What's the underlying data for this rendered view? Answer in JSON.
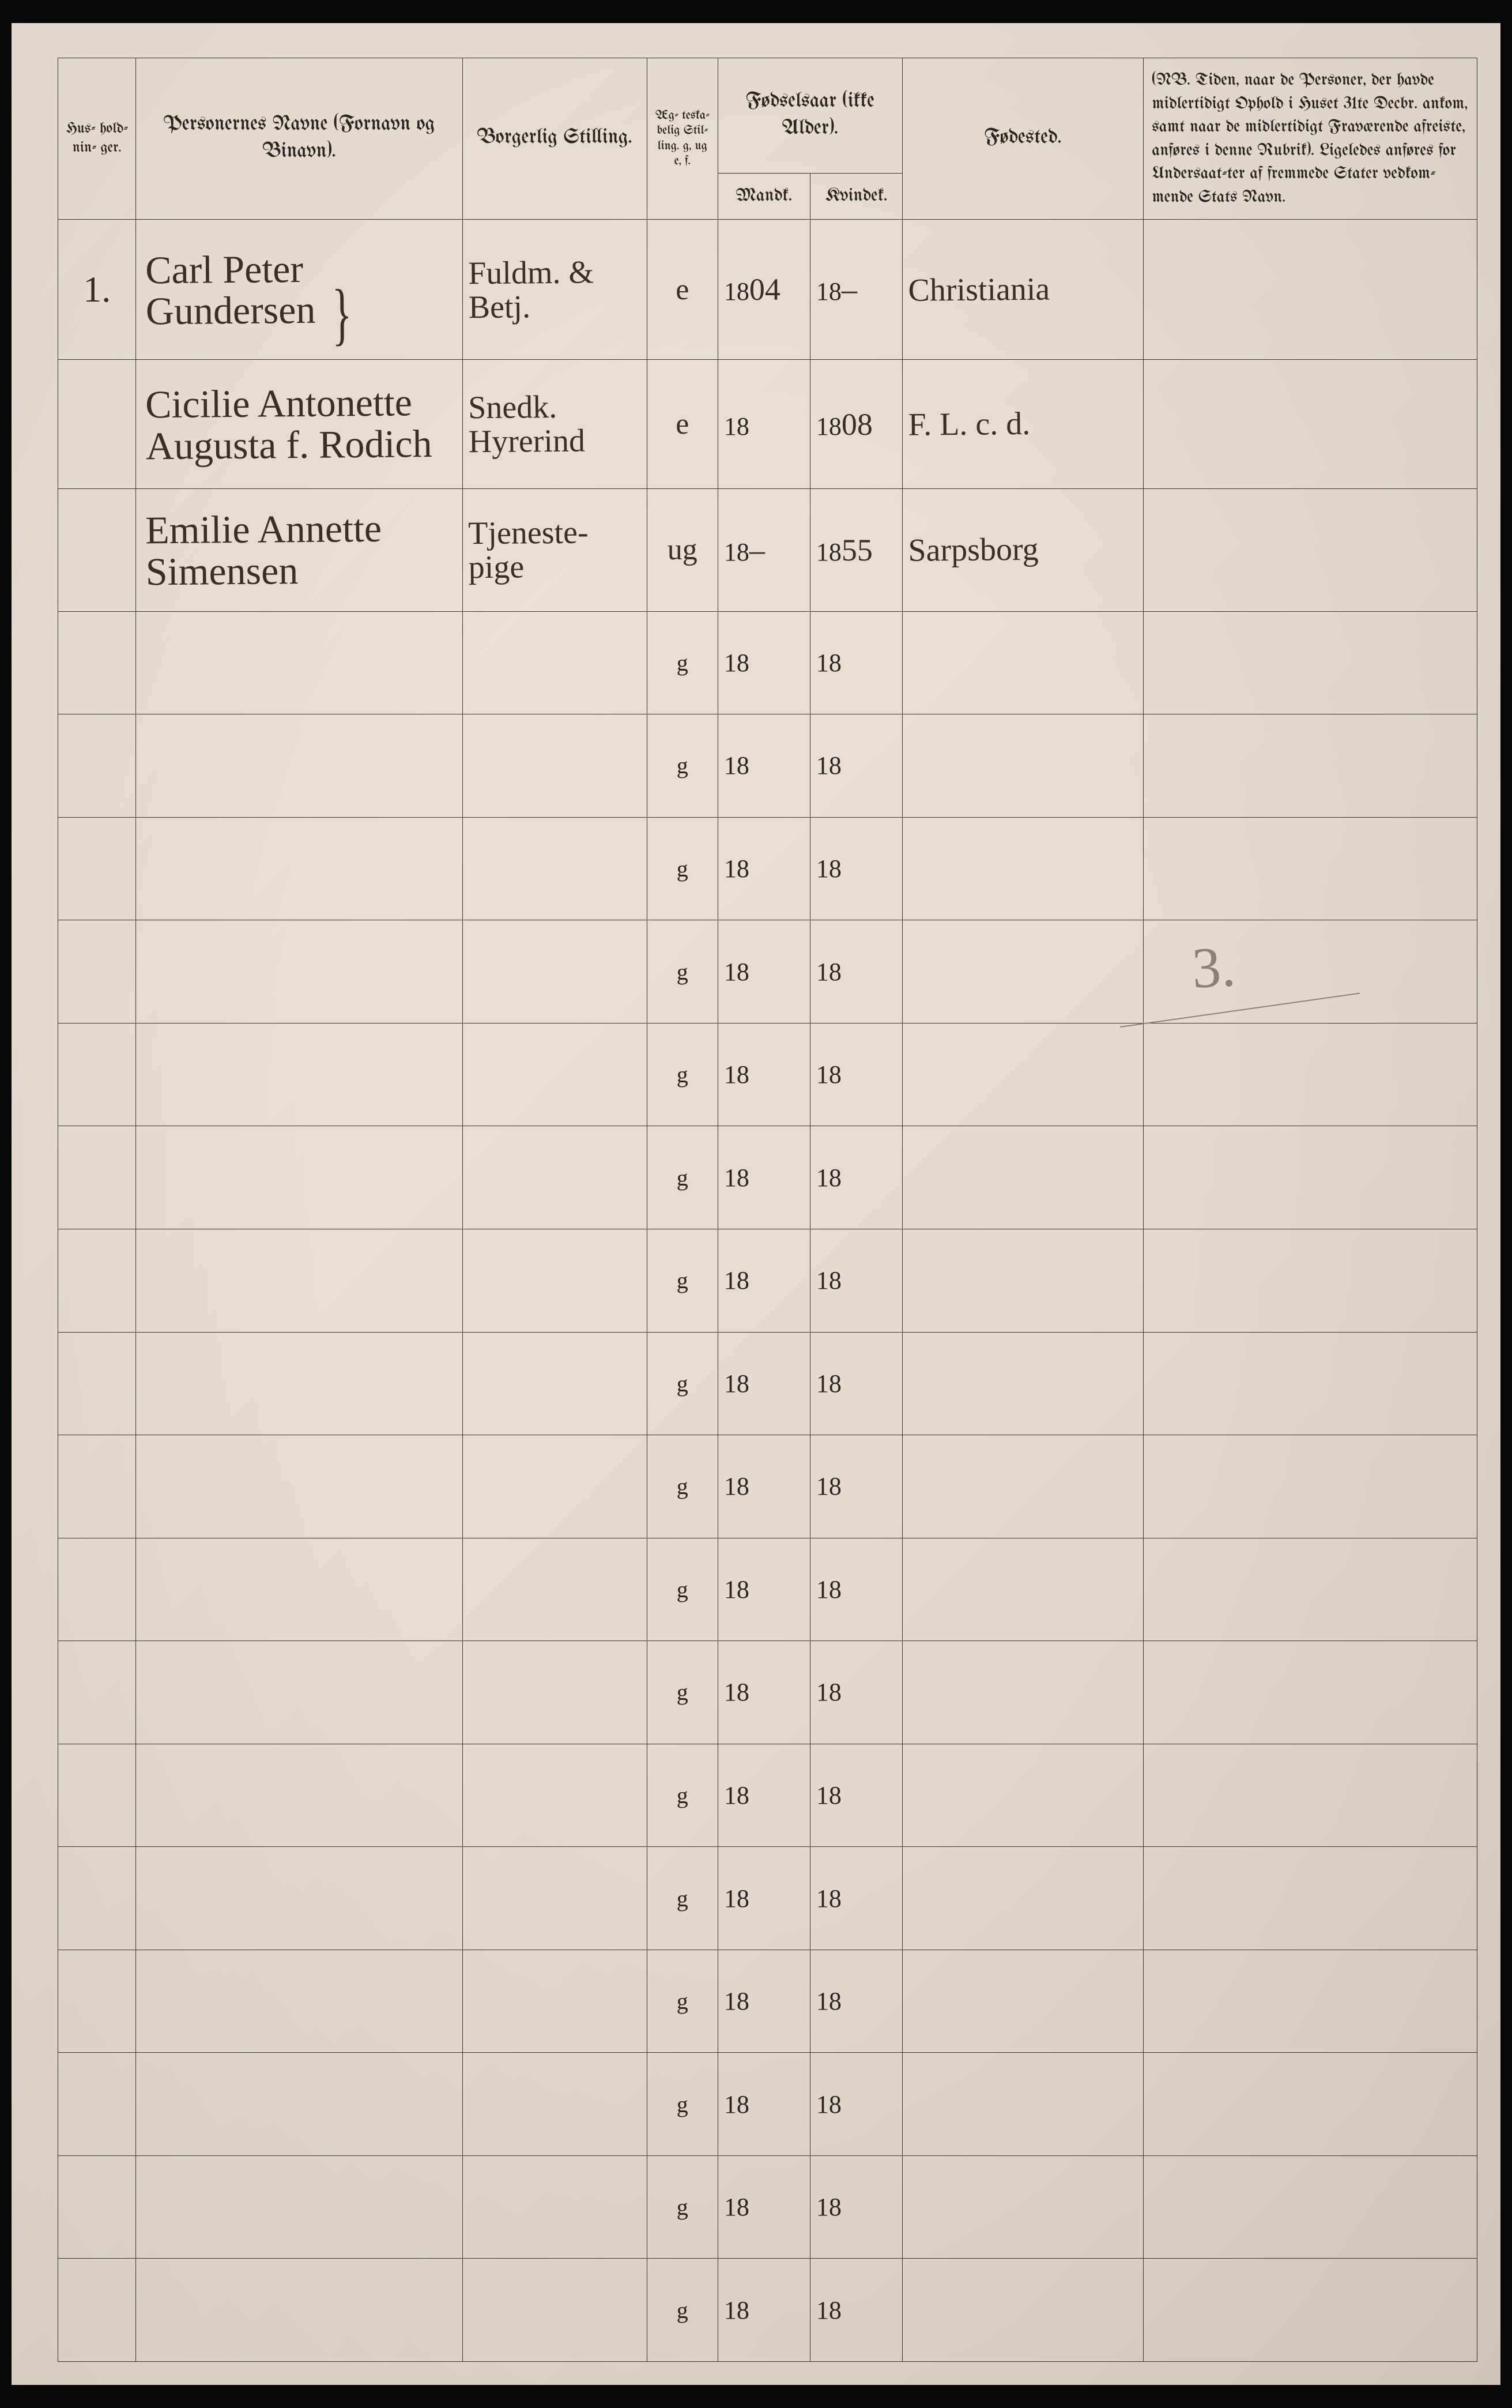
{
  "header": {
    "husholdninger": "Hus-\nhold-\nnin-\nger.",
    "personernes_navne": "Personernes Navne\n(Fornavn og Binavn).",
    "borgerlig_stilling": "Borgerlig Stilling.",
    "aegteskabelig": "Æg-\nteska-\nbelig\nStil-\nling.\ng, ug\ne, f.",
    "fodselsaar": "Fødselsaar\n(ikke Alder).",
    "mandk": "Mandk.",
    "kvindek": "Kvindek.",
    "fodested": "Fødested.",
    "notes": "(NB. Tiden, naar de Personer, der havde midlertidigt Ophold i Huset 31te Decbr. ankom, samt naar de midlertidigt Fraværende afreiste, anføres i denne Rubrik). Ligeledes anføres for Undersaat-ter af fremmede Stater vedkom-mende Stats Navn."
  },
  "rows": [
    {
      "hus": "1.",
      "navn": "Carl Peter\nGundersen",
      "borgerlig": "Fuldm. & Betj.",
      "aekt": "e",
      "mandk_prefix": "18",
      "mandk_suffix": "04",
      "kvindek_prefix": "18",
      "kvindek_suffix": "–",
      "fodested": "Christiania"
    },
    {
      "navn": "Cicilie Antonette\nAugusta f. Rodich",
      "borgerlig": "Snedk.\nHyrerind",
      "aekt": "e",
      "mandk_prefix": "18",
      "mandk_suffix": "",
      "kvindek_prefix": "18",
      "kvindek_suffix": "08",
      "fodested": "F. L. c. d."
    },
    {
      "navn": "Emilie Annette\nSimensen",
      "borgerlig": "Tjeneste-\npige",
      "aekt": "ug",
      "mandk_prefix": "18",
      "mandk_suffix": "–",
      "kvindek_prefix": "18",
      "kvindek_suffix": "55",
      "fodested": "Sarpsborg"
    }
  ],
  "empty_row": {
    "aekt": "g",
    "year_prefix": "18"
  },
  "empty_row_count": 17,
  "pencil_annotation": "3.",
  "colors": {
    "paper_light": "#f0e4d8",
    "paper_dark": "#ddd0c4",
    "ink": "#2a2520",
    "handwriting": "#3b2e22",
    "pencil": "#8a8278",
    "border": "#3a3530"
  }
}
